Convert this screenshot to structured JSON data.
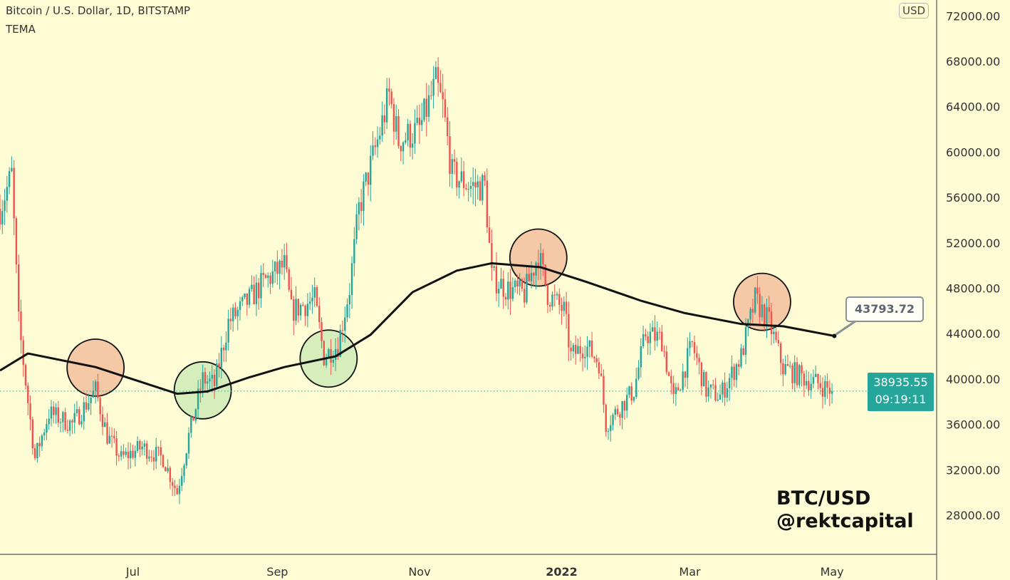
{
  "header": {
    "title": "Bitcoin / U.S. Dollar, 1D, BITSTAMP",
    "indicator": "TEMA"
  },
  "axis": {
    "currency": "USD"
  },
  "last_price": {
    "value": "38935.55",
    "countdown": "09:19:11"
  },
  "tema_label": "43793.72",
  "watermark": {
    "line1": "BTC/USD",
    "line2": "@rektcapital"
  },
  "colors": {
    "up": "#26a69a",
    "down": "#ef5350",
    "tema": "#111111",
    "bg": "#fdfcd4",
    "circle_orange": "#f6c9a6",
    "circle_green": "#d6eebb"
  },
  "chart_data": {
    "type": "candlestick",
    "title": "Bitcoin / U.S. Dollar, 1D, BITSTAMP",
    "xlabel": "",
    "ylabel": "USD",
    "ylim": [
      24000,
      73000
    ],
    "yticks": [
      "72000.00",
      "68000.00",
      "64000.00",
      "60000.00",
      "56000.00",
      "52000.00",
      "48000.00",
      "44000.00",
      "40000.00",
      "36000.00",
      "32000.00",
      "28000.00"
    ],
    "x_day_range": [
      0,
      402
    ],
    "xticks": [
      {
        "label": "Jul",
        "day": 57,
        "bold": false
      },
      {
        "label": "Sep",
        "day": 119,
        "bold": false
      },
      {
        "label": "Nov",
        "day": 180,
        "bold": false
      },
      {
        "label": "2022",
        "day": 241,
        "bold": true
      },
      {
        "label": "Mar",
        "day": 296,
        "bold": false
      },
      {
        "label": "May",
        "day": 357,
        "bold": false
      }
    ],
    "close_path": [
      [
        0,
        55000
      ],
      [
        5,
        58000
      ],
      [
        8,
        45000
      ],
      [
        12,
        38000
      ],
      [
        15,
        33000
      ],
      [
        21,
        37000
      ],
      [
        31,
        36000
      ],
      [
        41,
        39000
      ],
      [
        46,
        35000
      ],
      [
        52,
        33000
      ],
      [
        61,
        34000
      ],
      [
        70,
        33000
      ],
      [
        76,
        30000
      ],
      [
        81,
        35000
      ],
      [
        87,
        40000
      ],
      [
        92,
        39500
      ],
      [
        98,
        45000
      ],
      [
        107,
        47000
      ],
      [
        113,
        48500
      ],
      [
        122,
        50000
      ],
      [
        125,
        46000
      ],
      [
        135,
        47000
      ],
      [
        139,
        42000
      ],
      [
        145,
        43000
      ],
      [
        150,
        48000
      ],
      [
        154,
        55000
      ],
      [
        162,
        61000
      ],
      [
        167,
        65000
      ],
      [
        171,
        61000
      ],
      [
        180,
        62000
      ],
      [
        187,
        66000
      ],
      [
        190,
        64000
      ],
      [
        194,
        58000
      ],
      [
        202,
        57000
      ],
      [
        208,
        57000
      ],
      [
        211,
        49000
      ],
      [
        217,
        48000
      ],
      [
        225,
        47500
      ],
      [
        231,
        51000
      ],
      [
        235,
        47500
      ],
      [
        242,
        46000
      ],
      [
        245,
        42000
      ],
      [
        251,
        43000
      ],
      [
        257,
        41500
      ],
      [
        260,
        36000
      ],
      [
        266,
        37500
      ],
      [
        272,
        39000
      ],
      [
        277,
        44000
      ],
      [
        284,
        43500
      ],
      [
        289,
        38000
      ],
      [
        297,
        43000
      ],
      [
        303,
        39000
      ],
      [
        309,
        38500
      ],
      [
        318,
        42000
      ],
      [
        324,
        47000
      ],
      [
        330,
        45000
      ],
      [
        336,
        41000
      ],
      [
        346,
        40000
      ],
      [
        352,
        39500
      ],
      [
        357,
        38935.55
      ]
    ],
    "tema": [
      [
        0,
        40750
      ],
      [
        12,
        42250
      ],
      [
        41,
        41050
      ],
      [
        76,
        38700
      ],
      [
        89,
        38900
      ],
      [
        107,
        40150
      ],
      [
        122,
        41050
      ],
      [
        144,
        42000
      ],
      [
        159,
        43900
      ],
      [
        177,
        47650
      ],
      [
        196,
        49550
      ],
      [
        211,
        50200
      ],
      [
        232,
        49850
      ],
      [
        251,
        48600
      ],
      [
        275,
        46900
      ],
      [
        294,
        45800
      ],
      [
        318,
        44850
      ],
      [
        336,
        44650
      ],
      [
        358,
        43793.72
      ]
    ],
    "annotations": [
      {
        "type": "circle",
        "color": "orange",
        "day": 41,
        "price": 41000
      },
      {
        "type": "circle",
        "color": "green",
        "day": 87,
        "price": 39000
      },
      {
        "type": "circle",
        "color": "green",
        "day": 141,
        "price": 41800
      },
      {
        "type": "circle",
        "color": "orange",
        "day": 231,
        "price": 50700
      },
      {
        "type": "circle",
        "color": "orange",
        "day": 327,
        "price": 46800
      }
    ],
    "last_price": 38935.55
  }
}
